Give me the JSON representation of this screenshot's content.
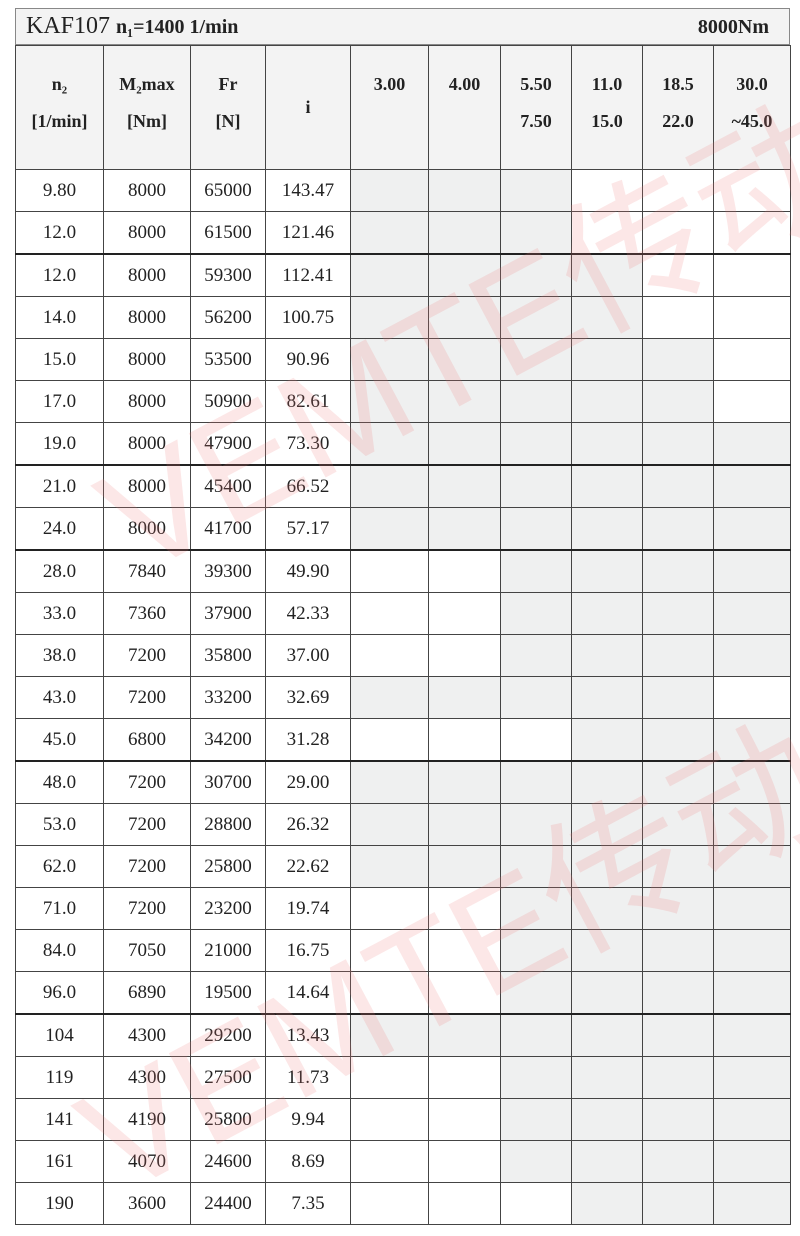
{
  "title": {
    "model": "KAF107",
    "speed": "n₁=1400 1/min",
    "torque": "8000Nm"
  },
  "headers": [
    {
      "l1": "n₂",
      "l2": "[1/min]"
    },
    {
      "l1": "M₂max",
      "l2": "[Nm]"
    },
    {
      "l1": "Fr",
      "l2": "[N]"
    },
    {
      "l1": "i",
      "l2": ""
    },
    {
      "l1": "3.00",
      "l2": ""
    },
    {
      "l1": "4.00",
      "l2": ""
    },
    {
      "l1": "5.50",
      "l2": "7.50"
    },
    {
      "l1": "11.0",
      "l2": "15.0"
    },
    {
      "l1": "18.5",
      "l2": "22.0"
    },
    {
      "l1": "30.0",
      "l2": "~45.0"
    }
  ],
  "shade_color": "#eff0f0",
  "watermark": "VEMTE传动",
  "rows": [
    {
      "n2": "9.80",
      "m2": "8000",
      "fr": "65000",
      "i": "143.47",
      "avail": [
        1,
        1,
        1,
        0,
        0,
        0
      ]
    },
    {
      "n2": "12.0",
      "m2": "8000",
      "fr": "61500",
      "i": "121.46",
      "avail": [
        1,
        1,
        1,
        0,
        0,
        0
      ]
    },
    {
      "n2": "12.0",
      "m2": "8000",
      "fr": "59300",
      "i": "112.41",
      "avail": [
        1,
        1,
        1,
        1,
        0,
        0
      ]
    },
    {
      "n2": "14.0",
      "m2": "8000",
      "fr": "56200",
      "i": "100.75",
      "avail": [
        1,
        1,
        1,
        1,
        0,
        0
      ]
    },
    {
      "n2": "15.0",
      "m2": "8000",
      "fr": "53500",
      "i": "90.96",
      "avail": [
        1,
        1,
        1,
        1,
        1,
        0
      ]
    },
    {
      "n2": "17.0",
      "m2": "8000",
      "fr": "50900",
      "i": "82.61",
      "avail": [
        1,
        1,
        1,
        1,
        1,
        0
      ]
    },
    {
      "n2": "19.0",
      "m2": "8000",
      "fr": "47900",
      "i": "73.30",
      "avail": [
        1,
        1,
        1,
        1,
        1,
        1
      ]
    },
    {
      "n2": "21.0",
      "m2": "8000",
      "fr": "45400",
      "i": "66.52",
      "avail": [
        1,
        1,
        1,
        1,
        1,
        1
      ]
    },
    {
      "n2": "24.0",
      "m2": "8000",
      "fr": "41700",
      "i": "57.17",
      "avail": [
        1,
        1,
        1,
        1,
        1,
        1
      ]
    },
    {
      "n2": "28.0",
      "m2": "7840",
      "fr": "39300",
      "i": "49.90",
      "avail": [
        0,
        0,
        1,
        1,
        1,
        1
      ]
    },
    {
      "n2": "33.0",
      "m2": "7360",
      "fr": "37900",
      "i": "42.33",
      "avail": [
        0,
        0,
        1,
        1,
        1,
        1
      ]
    },
    {
      "n2": "38.0",
      "m2": "7200",
      "fr": "35800",
      "i": "37.00",
      "avail": [
        0,
        0,
        1,
        1,
        1,
        1
      ]
    },
    {
      "n2": "43.0",
      "m2": "7200",
      "fr": "33200",
      "i": "32.69",
      "avail": [
        1,
        1,
        1,
        1,
        1,
        0
      ]
    },
    {
      "n2": "45.0",
      "m2": "6800",
      "fr": "34200",
      "i": "31.28",
      "avail": [
        0,
        0,
        0,
        1,
        1,
        1
      ]
    },
    {
      "n2": "48.0",
      "m2": "7200",
      "fr": "30700",
      "i": "29.00",
      "avail": [
        1,
        1,
        1,
        1,
        1,
        1
      ]
    },
    {
      "n2": "53.0",
      "m2": "7200",
      "fr": "28800",
      "i": "26.32",
      "avail": [
        1,
        1,
        1,
        1,
        1,
        1
      ]
    },
    {
      "n2": "62.0",
      "m2": "7200",
      "fr": "25800",
      "i": "22.62",
      "avail": [
        1,
        1,
        1,
        1,
        1,
        1
      ]
    },
    {
      "n2": "71.0",
      "m2": "7200",
      "fr": "23200",
      "i": "19.74",
      "avail": [
        0,
        0,
        1,
        1,
        1,
        1
      ]
    },
    {
      "n2": "84.0",
      "m2": "7050",
      "fr": "21000",
      "i": "16.75",
      "avail": [
        0,
        0,
        1,
        1,
        1,
        1
      ]
    },
    {
      "n2": "96.0",
      "m2": "6890",
      "fr": "19500",
      "i": "14.64",
      "avail": [
        0,
        0,
        1,
        1,
        1,
        1
      ]
    },
    {
      "n2": "104",
      "m2": "4300",
      "fr": "29200",
      "i": "13.43",
      "avail": [
        1,
        1,
        1,
        1,
        1,
        1
      ]
    },
    {
      "n2": "119",
      "m2": "4300",
      "fr": "27500",
      "i": "11.73",
      "avail": [
        0,
        0,
        1,
        1,
        1,
        1
      ]
    },
    {
      "n2": "141",
      "m2": "4190",
      "fr": "25800",
      "i": "9.94",
      "avail": [
        0,
        0,
        1,
        1,
        1,
        1
      ]
    },
    {
      "n2": "161",
      "m2": "4070",
      "fr": "24600",
      "i": "8.69",
      "avail": [
        0,
        0,
        1,
        1,
        1,
        1
      ]
    },
    {
      "n2": "190",
      "m2": "3600",
      "fr": "24400",
      "i": "7.35",
      "avail": [
        0,
        0,
        0,
        1,
        1,
        1
      ]
    }
  ]
}
